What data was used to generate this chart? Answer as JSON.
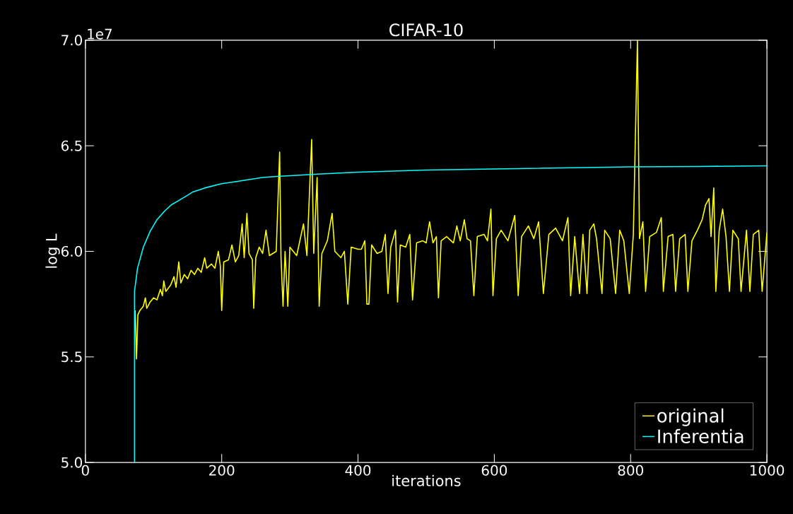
{
  "chart_data": {
    "type": "line",
    "title": "CIFAR-10",
    "xlabel": "iterations",
    "ylabel": "log L",
    "annotations": [
      "1e7"
    ],
    "xlim": [
      0,
      1000
    ],
    "xticks": [
      0,
      200,
      400,
      600,
      800,
      1000
    ],
    "ylim": [
      5.0,
      7.0
    ],
    "yticks": [
      {
        "value": 5.0,
        "label": "5.0"
      },
      {
        "value": 5.5,
        "label": "5.5"
      },
      {
        "value": 6.0,
        "label": "6.0"
      },
      {
        "value": 6.5,
        "label": "6.5"
      },
      {
        "value": 7.0,
        "label": "7.0"
      }
    ],
    "legend": "bottom right",
    "grid": false,
    "marker": "none",
    "line_style": "solid",
    "series": [
      {
        "name": "original",
        "color": "#ffff00",
        "x": [
          73,
          75,
          77,
          80,
          85,
          88,
          90,
          95,
          100,
          105,
          110,
          113,
          115,
          118,
          125,
          130,
          133,
          137,
          140,
          145,
          150,
          155,
          160,
          165,
          170,
          175,
          178,
          185,
          190,
          195,
          198,
          200,
          203,
          210,
          215,
          220,
          225,
          230,
          233,
          237,
          240,
          245,
          247,
          250,
          255,
          260,
          265,
          270,
          280,
          285,
          287,
          290,
          293,
          297,
          300,
          310,
          320,
          325,
          332,
          335,
          340,
          343,
          347,
          355,
          362,
          366,
          375,
          380,
          385,
          390,
          400,
          405,
          410,
          413,
          416,
          420,
          428,
          435,
          440,
          444,
          448,
          455,
          458,
          462,
          470,
          476,
          480,
          486,
          495,
          500,
          505,
          510,
          515,
          518,
          522,
          530,
          540,
          545,
          550,
          556,
          560,
          565,
          570,
          575,
          585,
          590,
          595,
          598,
          603,
          610,
          620,
          630,
          635,
          640,
          650,
          658,
          665,
          672,
          680,
          690,
          700,
          708,
          712,
          718,
          725,
          730,
          736,
          740,
          746,
          750,
          758,
          762,
          770,
          778,
          784,
          790,
          798,
          804,
          810,
          813,
          818,
          822,
          828,
          838,
          845,
          848,
          855,
          862,
          866,
          872,
          880,
          884,
          890,
          898,
          905,
          910,
          915,
          918,
          922,
          925,
          930,
          935,
          940,
          945,
          950,
          958,
          962,
          970,
          975,
          980,
          988,
          993,
          1000
        ],
        "values": [
          5.72,
          5.49,
          5.7,
          5.72,
          5.74,
          5.78,
          5.73,
          5.76,
          5.78,
          5.77,
          5.82,
          5.79,
          5.86,
          5.81,
          5.84,
          5.88,
          5.83,
          5.95,
          5.85,
          5.89,
          5.87,
          5.91,
          5.89,
          5.92,
          5.9,
          5.97,
          5.92,
          5.94,
          5.92,
          6.0,
          5.93,
          5.72,
          5.95,
          5.96,
          6.03,
          5.95,
          5.98,
          6.13,
          5.97,
          6.18,
          5.99,
          5.96,
          5.73,
          5.97,
          6.02,
          5.99,
          6.1,
          5.98,
          6.0,
          6.47,
          5.97,
          5.74,
          6.0,
          5.74,
          6.02,
          5.98,
          6.13,
          5.98,
          6.53,
          5.99,
          6.35,
          5.74,
          5.99,
          6.05,
          6.18,
          6.0,
          5.97,
          6.0,
          5.75,
          6.02,
          6.01,
          6.01,
          6.05,
          5.75,
          5.75,
          6.03,
          5.99,
          6.0,
          6.08,
          5.8,
          6.02,
          6.1,
          5.76,
          6.03,
          6.02,
          6.08,
          5.77,
          6.04,
          6.05,
          6.04,
          6.14,
          6.04,
          6.07,
          5.78,
          6.05,
          6.07,
          6.04,
          6.12,
          6.05,
          6.15,
          6.06,
          6.05,
          5.79,
          6.07,
          6.08,
          6.05,
          6.2,
          5.79,
          6.06,
          6.1,
          6.05,
          6.17,
          5.79,
          6.07,
          6.12,
          6.06,
          6.14,
          5.8,
          6.08,
          6.11,
          6.05,
          6.16,
          5.79,
          6.07,
          5.8,
          6.08,
          5.8,
          6.1,
          6.13,
          6.06,
          5.8,
          6.1,
          6.06,
          5.8,
          6.1,
          6.05,
          5.8,
          6.08,
          7.0,
          6.06,
          6.14,
          5.81,
          6.07,
          6.09,
          6.16,
          5.81,
          6.07,
          6.08,
          5.81,
          6.06,
          6.08,
          5.81,
          6.05,
          6.1,
          6.15,
          6.22,
          6.25,
          6.07,
          6.3,
          5.81,
          6.1,
          6.2,
          6.07,
          5.81,
          6.1,
          6.06,
          5.81,
          6.1,
          5.81,
          6.08,
          6.1,
          5.81,
          6.09
        ]
      },
      {
        "name": "Inferentia",
        "color": "#00ffff",
        "x": [
          72,
          72,
          76.5,
          85,
          95,
          105,
          116,
          126,
          136.5,
          147,
          157,
          175,
          199,
          220,
          240,
          260,
          281,
          310,
          341,
          400,
          500,
          600,
          700,
          800,
          900,
          1000
        ],
        "values": [
          5.0,
          5.81,
          5.92,
          6.02,
          6.095,
          6.15,
          6.19,
          6.22,
          6.24,
          6.26,
          6.28,
          6.3,
          6.32,
          6.33,
          6.34,
          6.35,
          6.355,
          6.36,
          6.366,
          6.375,
          6.385,
          6.39,
          6.395,
          6.4,
          6.402,
          6.405
        ]
      }
    ]
  }
}
